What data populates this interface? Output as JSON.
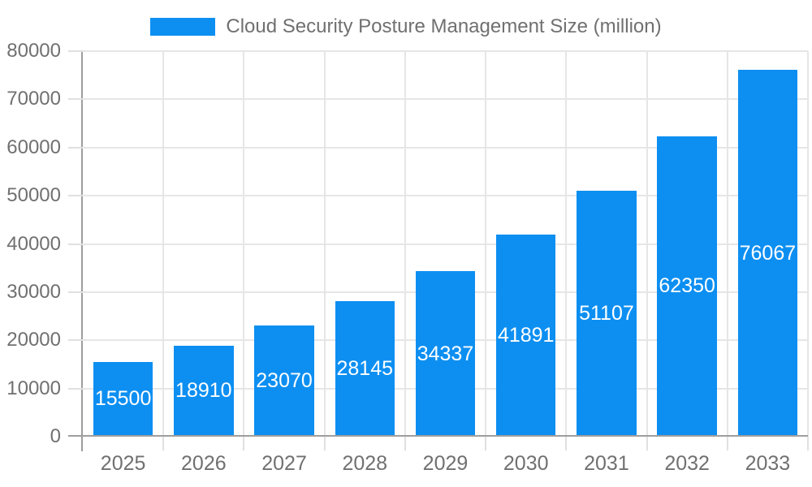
{
  "chart_data": {
    "type": "bar",
    "title": "Cloud Security Posture Management Size (million)",
    "categories": [
      "2025",
      "2026",
      "2027",
      "2028",
      "2029",
      "2030",
      "2031",
      "2032",
      "2033"
    ],
    "values": [
      15500,
      18910,
      23070,
      28145,
      34337,
      41891,
      51107,
      62350,
      76067
    ],
    "value_labels": [
      "15500",
      "18910",
      "23070",
      "28145",
      "34337",
      "41891",
      "51107",
      "62350",
      "76067"
    ],
    "xlabel": "",
    "ylabel": "",
    "ylim": [
      0,
      80000
    ],
    "ytick_step": 10000,
    "ytick_labels": [
      "0",
      "10000",
      "20000",
      "30000",
      "40000",
      "50000",
      "60000",
      "70000",
      "80000"
    ],
    "grid": true,
    "legend_position": "top-center",
    "legend_entries": [
      "Cloud Security Posture Management Size (million)"
    ],
    "colors": {
      "bar": "#0d8ff2",
      "value_label": "#ffffff",
      "axis_label": "#707070",
      "axis_line": "#9e9e9e",
      "gridline": "#e6e6e6",
      "tick": "#e0e0e0",
      "background": "#ffffff"
    }
  }
}
